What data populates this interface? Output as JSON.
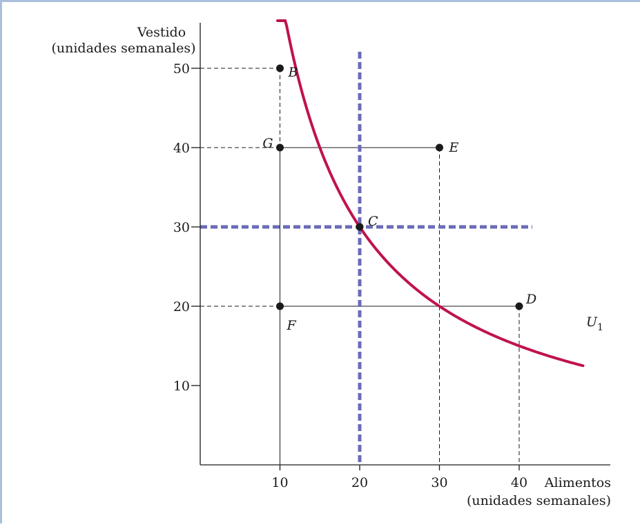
{
  "chart_data": {
    "type": "line",
    "title": "",
    "xlabel": "Alimentos",
    "xlabel_units": "(unidades semanales)",
    "ylabel": "Vestido",
    "ylabel_units": "(unidades semanales)",
    "xlim": [
      0,
      52
    ],
    "ylim": [
      0,
      56
    ],
    "xticks": [
      "10",
      "20",
      "30",
      "40"
    ],
    "yticks": [
      "10",
      "20",
      "30",
      "40",
      "50"
    ],
    "grid": false,
    "colors": {
      "curve": "#c0124f",
      "reference": "#6b6bb8",
      "axis": "#1a1a1a",
      "frame": "#a9bfdc"
    },
    "curve": {
      "name_base": "U",
      "name_sub": "1",
      "formula": "x*y = 600",
      "x_range": [
        9.7,
        48
      ]
    },
    "reference_lines": {
      "vertical_x": 20,
      "horizontal_y": 30
    },
    "points": [
      {
        "label": "B",
        "x": 10,
        "y": 50
      },
      {
        "label": "G",
        "x": 10,
        "y": 40
      },
      {
        "label": "E",
        "x": 30,
        "y": 40
      },
      {
        "label": "C",
        "x": 20,
        "y": 30
      },
      {
        "label": "D",
        "x": 40,
        "y": 20
      },
      {
        "label": "F",
        "x": 10,
        "y": 20
      }
    ]
  }
}
